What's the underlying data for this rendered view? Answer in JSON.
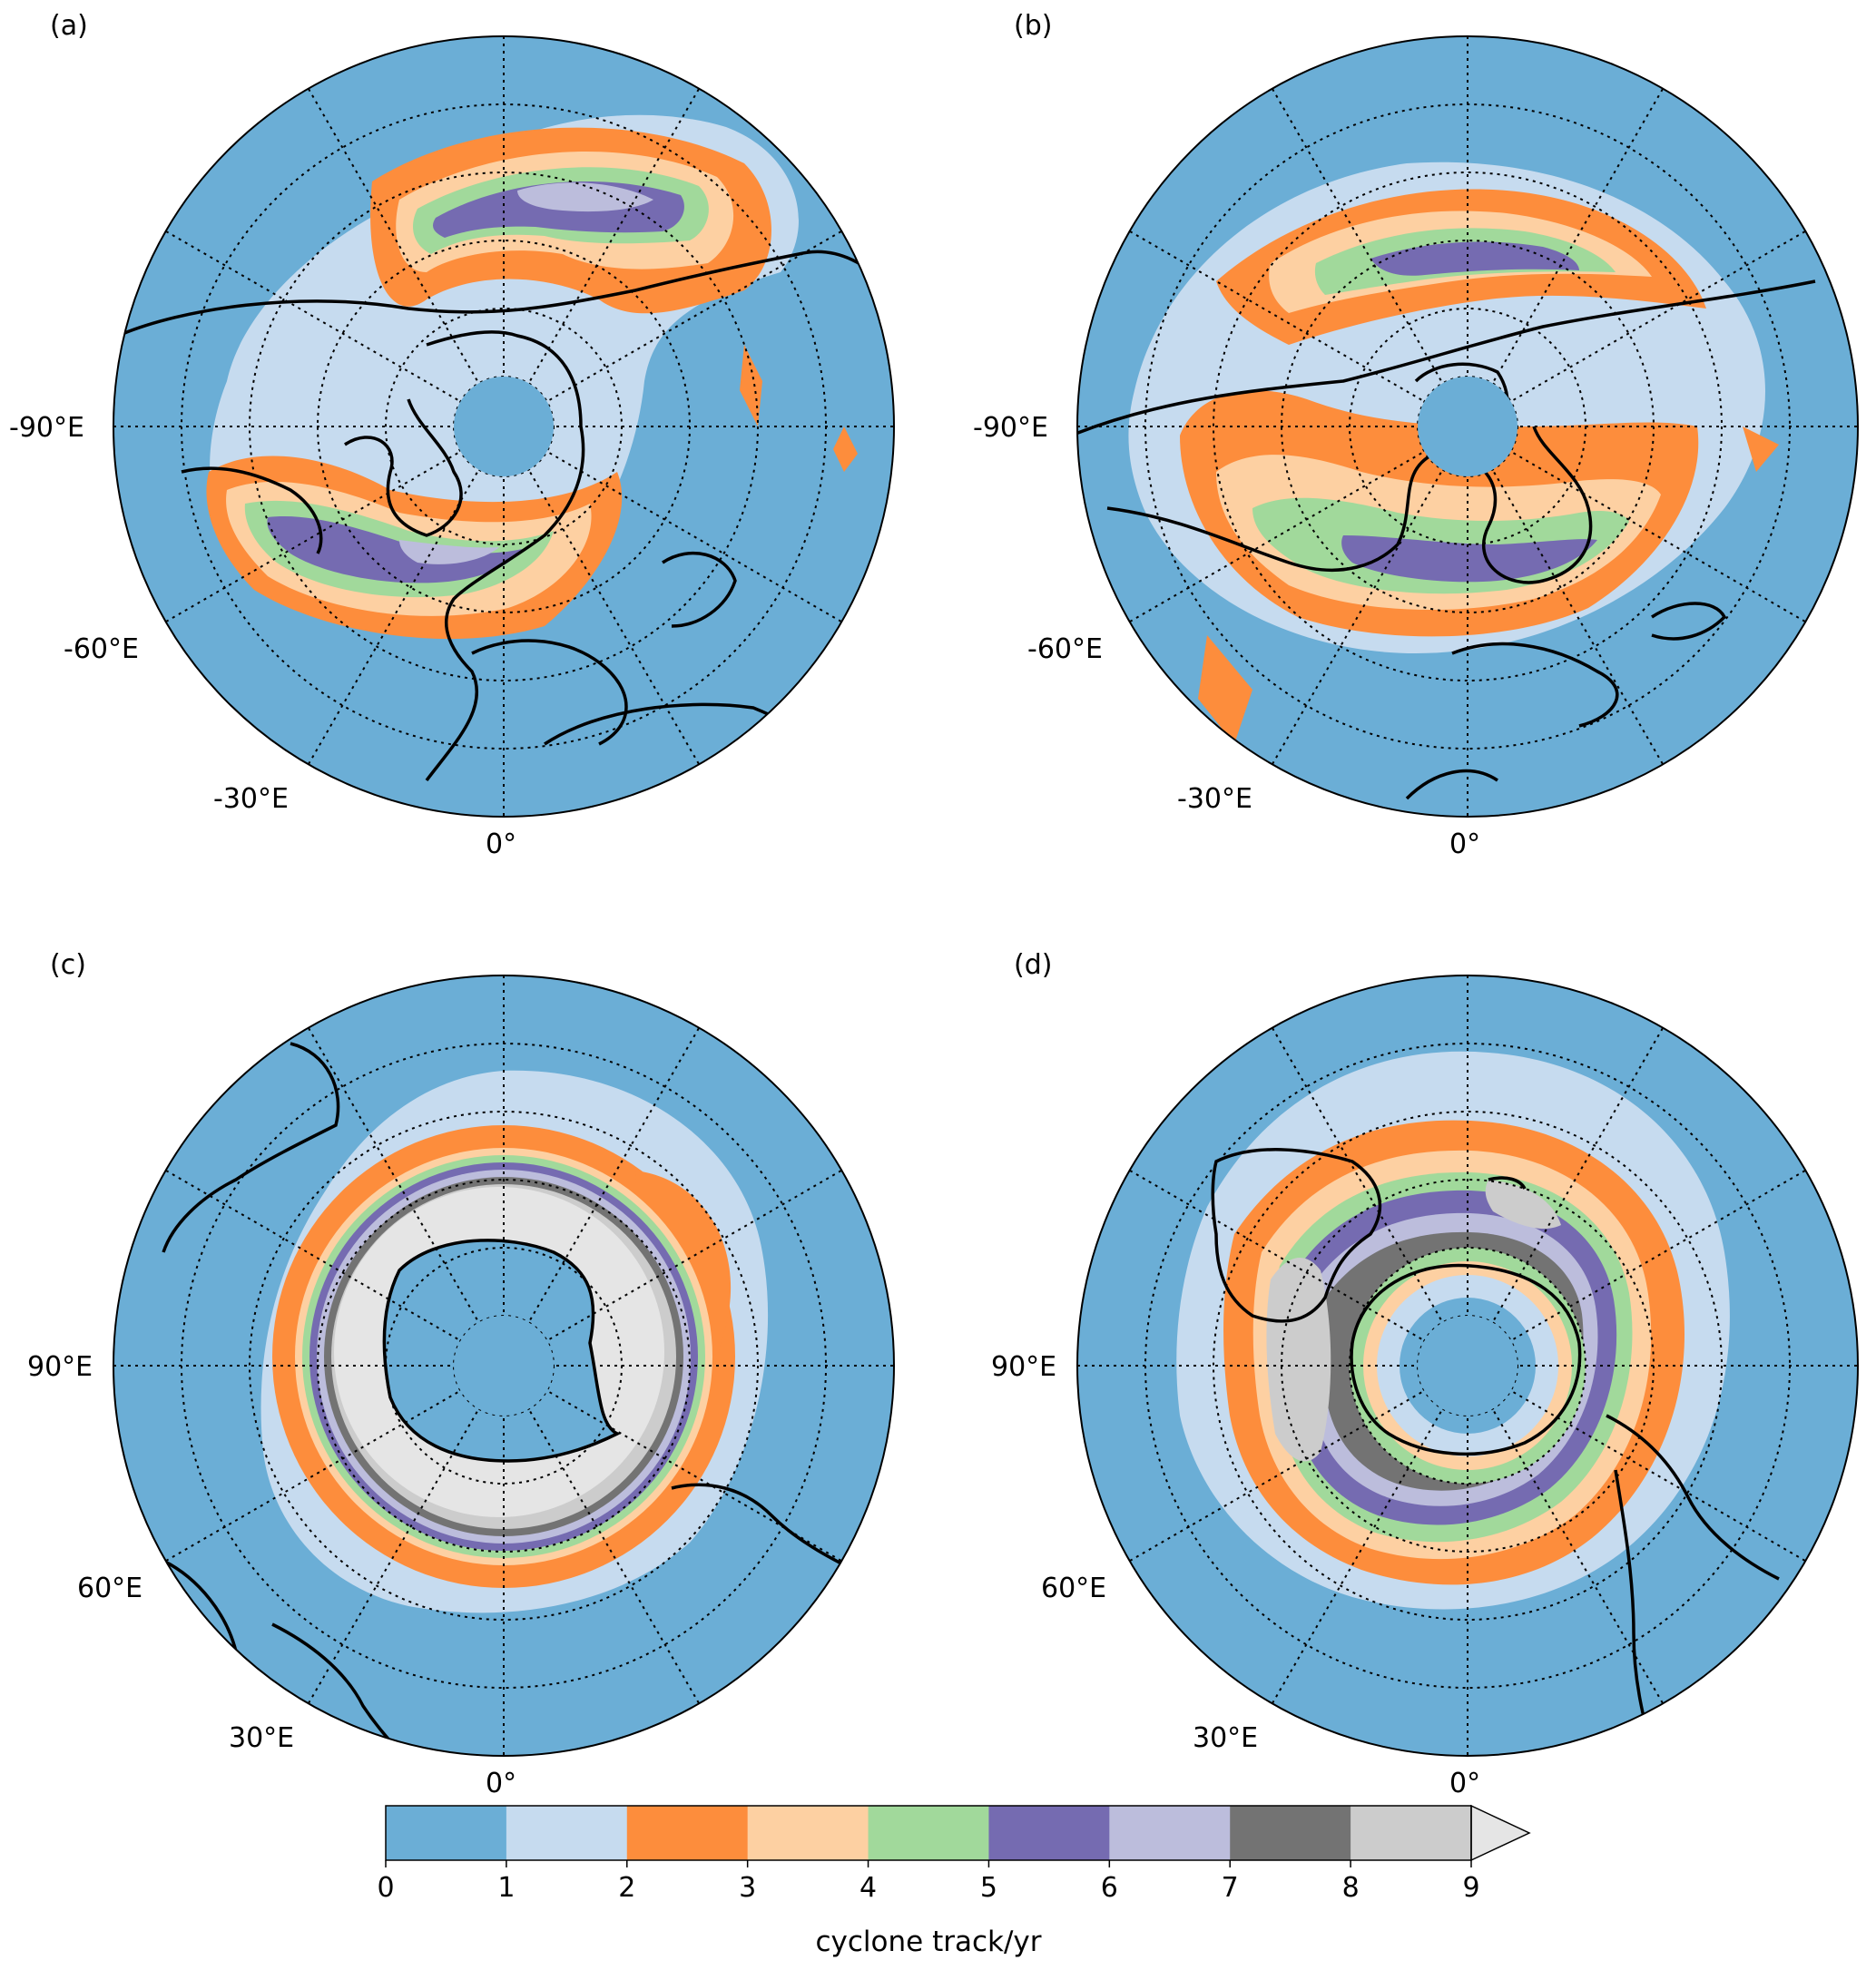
{
  "panels": [
    {
      "id": "a",
      "label": "(a)",
      "lon_labels": [
        "-90°E",
        "-60°E",
        "-30°E",
        "0°"
      ]
    },
    {
      "id": "b",
      "label": "(b)",
      "lon_labels": [
        "-90°E",
        "-60°E",
        "-30°E",
        "0°"
      ]
    },
    {
      "id": "c",
      "label": "(c)",
      "lon_labels": [
        "90°E",
        "60°E",
        "30°E",
        "0°"
      ]
    },
    {
      "id": "d",
      "label": "(d)",
      "lon_labels": [
        "90°E",
        "60°E",
        "30°E",
        "0°"
      ]
    }
  ],
  "colorbar": {
    "label": "cyclone track/yr",
    "ticks": [
      "0",
      "1",
      "2",
      "3",
      "4",
      "5",
      "6",
      "7",
      "8",
      "9"
    ],
    "colors": [
      "#6baed6",
      "#c6dbef",
      "#fd8d3c",
      "#fdd0a2",
      "#a1d99b",
      "#756bb1",
      "#bcbddc",
      "#737373",
      "#cccccc"
    ],
    "extend_color": "#e5e5e5"
  },
  "colors": {
    "ocean_background": "#6baed6",
    "coastline": "#000000",
    "grid": "#000000"
  }
}
